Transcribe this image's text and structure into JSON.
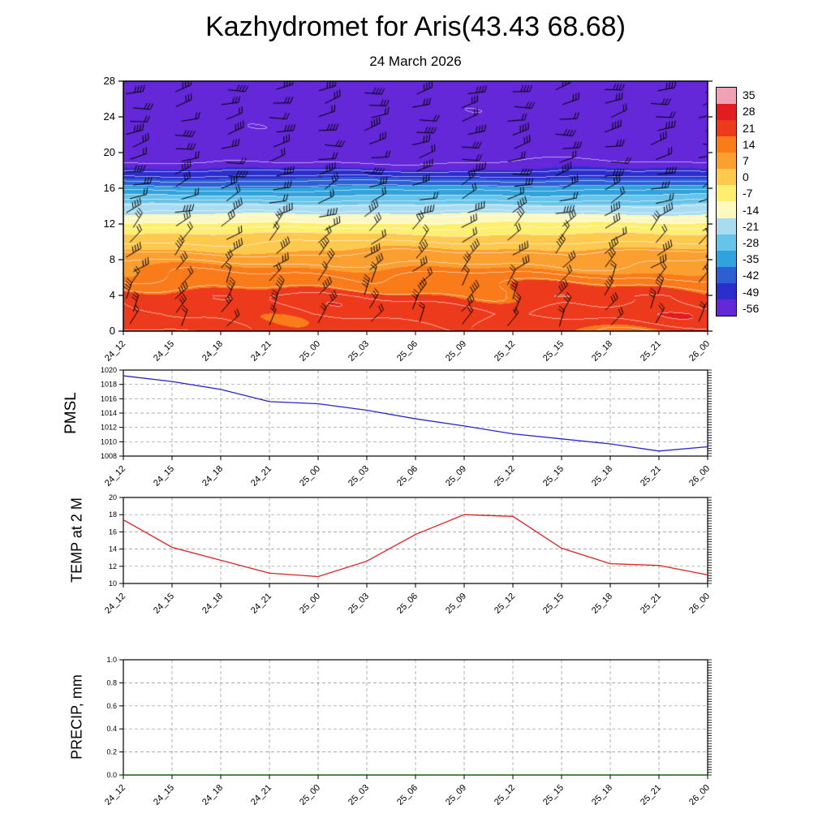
{
  "title": "Kazhydromet for Aris(43.43 68.68)",
  "subtitle": "24 March 2026",
  "time_labels": [
    "24_12",
    "24_15",
    "24_18",
    "24_21",
    "25_00",
    "25_03",
    "25_06",
    "25_09",
    "25_12",
    "25_15",
    "25_18",
    "25_21",
    "26_00"
  ],
  "chart_data": [
    {
      "type": "heatmap",
      "name": "upper-air temperature cross-section with wind barbs",
      "x_categories": [
        "24_12",
        "24_15",
        "24_18",
        "24_21",
        "25_00",
        "25_03",
        "25_06",
        "25_09",
        "25_12",
        "25_15",
        "25_18",
        "25_21",
        "26_00"
      ],
      "ylim": [
        0,
        28
      ],
      "y_ticks": [
        0,
        4,
        8,
        12,
        16,
        20,
        24,
        28
      ],
      "colorbar": {
        "ticks": [
          35,
          28,
          21,
          14,
          7,
          0,
          -7,
          -14,
          -21,
          -28,
          -35,
          -42,
          -49,
          -56
        ],
        "colors": [
          "#f0a2b4",
          "#e11d1f",
          "#ee3a1c",
          "#f97b1a",
          "#fa9f30",
          "#fdc94f",
          "#ffef6e",
          "#fbf8c0",
          "#a9dcf0",
          "#66c3ea",
          "#30a2dd",
          "#2b5fd3",
          "#2b2ecd",
          "#6428d8"
        ]
      },
      "temperature_profile": {
        "heights": [
          0,
          2,
          4,
          6,
          8,
          10,
          11,
          12,
          13,
          14,
          15,
          16,
          17,
          18,
          19,
          20,
          24,
          28
        ],
        "temps": [
          22,
          25,
          23,
          17,
          11,
          4,
          0,
          -6,
          -13,
          -19,
          -26,
          -33,
          -41,
          -48,
          -52,
          -54,
          -55,
          -54
        ]
      },
      "wind_barbs": true
    },
    {
      "type": "line",
      "label": "PMSL",
      "color": "#2824cc",
      "ylim": [
        1008,
        1020
      ],
      "y_ticks": [
        1008,
        1010,
        1012,
        1014,
        1016,
        1018,
        1020
      ],
      "x_categories": [
        "24_12",
        "24_15",
        "24_18",
        "24_21",
        "25_00",
        "25_03",
        "25_06",
        "25_09",
        "25_12",
        "25_15",
        "25_18",
        "25_21",
        "26_00"
      ],
      "values": [
        1019.2,
        1018.4,
        1017.3,
        1015.6,
        1015.3,
        1014.4,
        1013.2,
        1012.2,
        1011.1,
        1010.4,
        1009.7,
        1008.7,
        1009.3
      ]
    },
    {
      "type": "line",
      "label": "TEMP at 2 M",
      "color": "#dd2222",
      "ylim": [
        10,
        20
      ],
      "y_ticks": [
        10,
        12,
        14,
        16,
        18,
        20
      ],
      "x_categories": [
        "24_12",
        "24_15",
        "24_18",
        "24_21",
        "25_00",
        "25_03",
        "25_06",
        "25_09",
        "25_12",
        "25_15",
        "25_18",
        "25_21",
        "26_00"
      ],
      "values": [
        17.4,
        14.2,
        12.7,
        11.2,
        10.8,
        12.6,
        15.7,
        18.0,
        17.8,
        14.1,
        12.3,
        12.1,
        11.0
      ]
    },
    {
      "type": "line",
      "label": "PRECIP, mm",
      "color": "#005f00",
      "ylim": [
        0,
        1
      ],
      "y_ticks": [
        0,
        0.2,
        0.4,
        0.6,
        0.8,
        1
      ],
      "y_tick_labels": [
        "0.0",
        "0.2",
        "0.4",
        "0.6",
        "0.8",
        "1.0"
      ],
      "x_categories": [
        "24_12",
        "24_15",
        "24_18",
        "24_21",
        "25_00",
        "25_03",
        "25_06",
        "25_09",
        "25_12",
        "25_15",
        "25_18",
        "25_21",
        "26_00"
      ],
      "values": [
        0,
        0,
        0,
        0,
        0,
        0,
        0,
        0,
        0,
        0,
        0,
        0,
        0
      ]
    }
  ]
}
